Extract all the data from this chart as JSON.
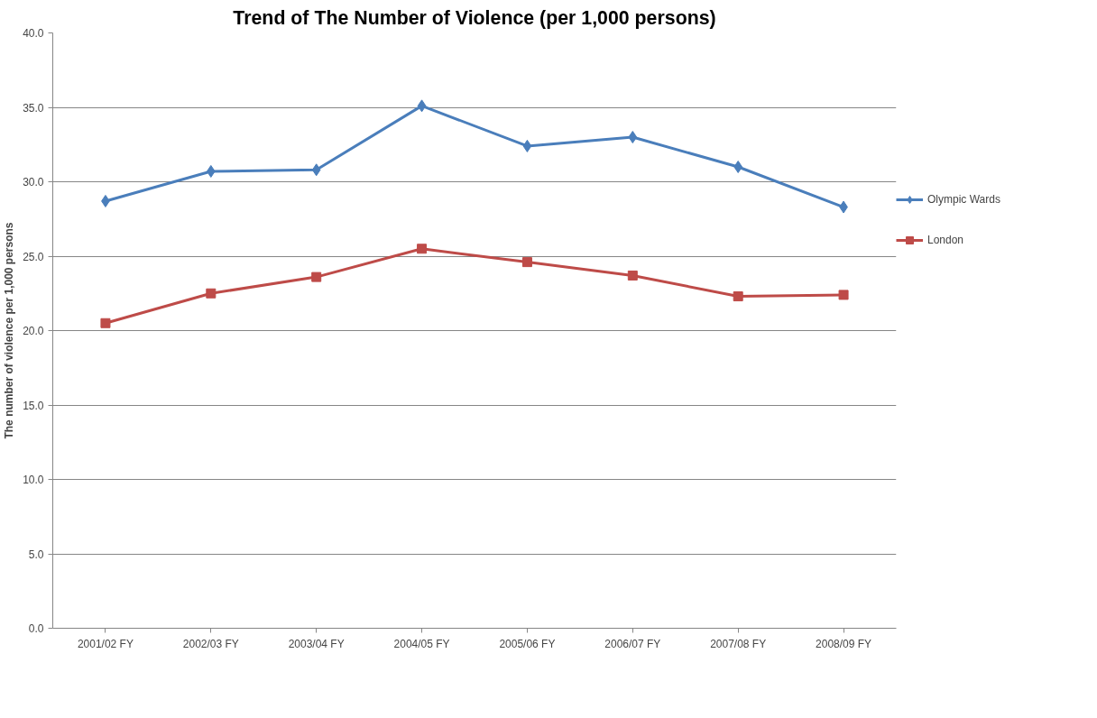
{
  "chart_data": {
    "type": "line",
    "title": "Trend of The Number of Violence (per 1,000 persons)",
    "ylabel": "The number of violence per 1,000 persons",
    "categories": [
      "2001/02 FY",
      "2002/03 FY",
      "2003/04 FY",
      "2004/05 FY",
      "2005/06 FY",
      "2006/07 FY",
      "2007/08 FY",
      "2008/09 FY"
    ],
    "series": [
      {
        "name": "Olympic Wards",
        "color": "#4a7ebb",
        "marker": "diamond",
        "values": [
          28.7,
          30.7,
          30.8,
          35.1,
          32.4,
          33.0,
          31.0,
          28.3
        ]
      },
      {
        "name": "London",
        "color": "#be4b48",
        "marker": "square",
        "values": [
          20.5,
          22.5,
          23.6,
          25.5,
          24.6,
          23.7,
          22.3,
          22.4
        ]
      }
    ],
    "ylim": [
      0,
      40
    ],
    "yticks": [
      {
        "value": 0,
        "label": "0.0"
      },
      {
        "value": 5,
        "label": "5.0"
      },
      {
        "value": 10,
        "label": "10.0"
      },
      {
        "value": 15,
        "label": "15.0"
      },
      {
        "value": 20,
        "label": "20.0"
      },
      {
        "value": 25,
        "label": "25.0"
      },
      {
        "value": 30,
        "label": "30.0"
      },
      {
        "value": 35,
        "label": "35.0"
      },
      {
        "value": 40,
        "label": "40.0"
      }
    ],
    "grid": "y",
    "legend": "right",
    "line_style": "solid"
  }
}
